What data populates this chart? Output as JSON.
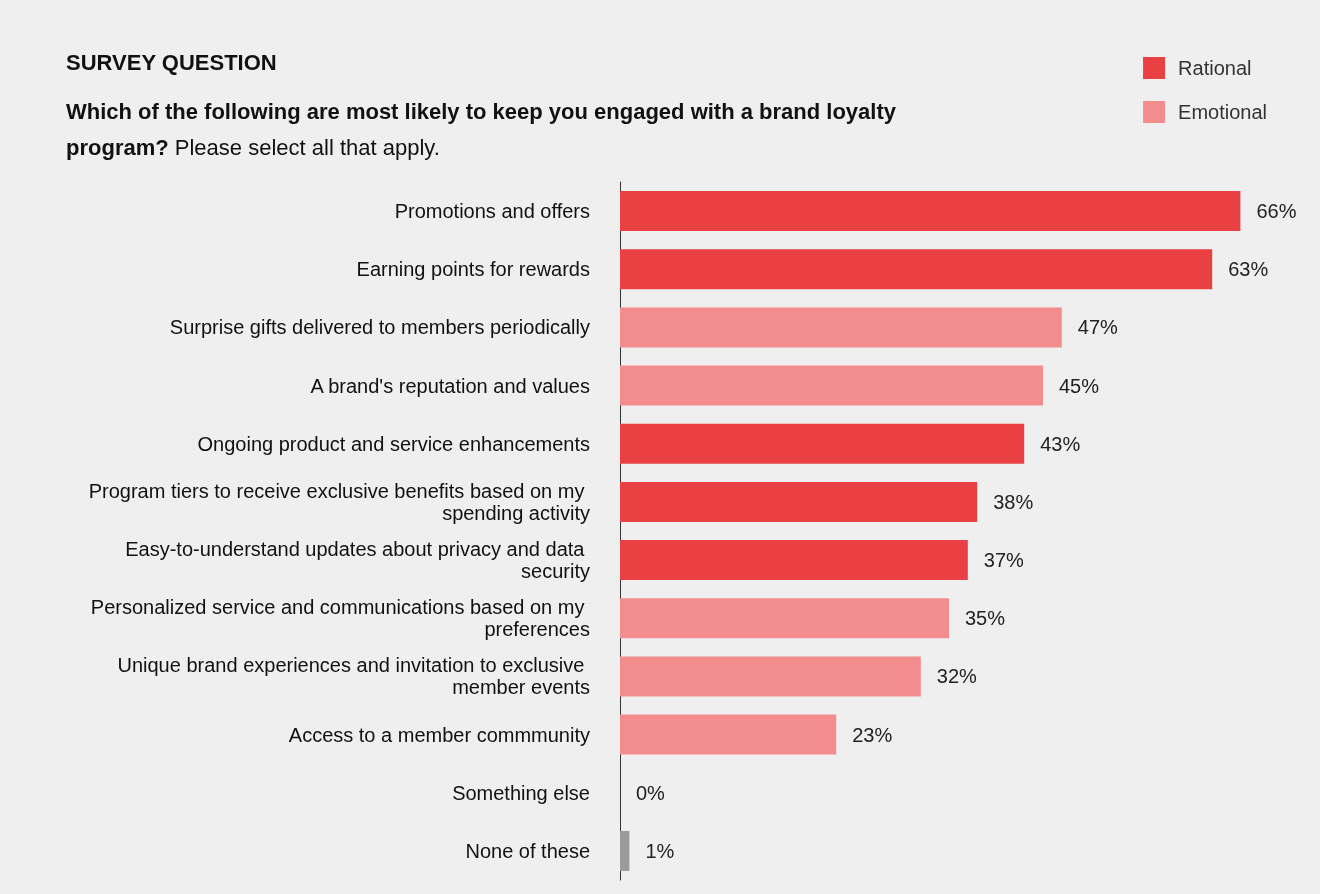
{
  "chart_data": {
    "type": "bar",
    "orientation": "horizontal",
    "stacked": true,
    "title": "SURVEY QUESTION",
    "subtitle": "Which of the following are most likely to keep you engaged with a brand loyalty program? Please select all that apply.",
    "legend": "top right",
    "grid": false,
    "categories": [
      "Promotions and offers",
      "Earning points for rewards",
      "Surprise gifts delivered to members periodically",
      "A brand's reputation and values",
      "Ongoing product and service enhancements",
      "Program tiers to receive exclusive benefits based on my spending activity",
      "Easy-to-understand updates about privacy and data security",
      "Personalized service and communications based on my preferences",
      "Unique brand experiences and invitation to exclusive member events",
      "Access to a member commmunity",
      "Something else",
      "None of these"
    ],
    "series": [
      {
        "name": "Rational",
        "color": "#e94043",
        "values": [
          66,
          63,
          null,
          null,
          43,
          38,
          37,
          null,
          null,
          null,
          null,
          null
        ],
        "value_labels": [
          "66%",
          "63%",
          null,
          null,
          "43%",
          "38%",
          "37%",
          null,
          null,
          null,
          null,
          null
        ]
      },
      {
        "name": "Emotional",
        "color": "#f38d8d",
        "values": [
          null,
          null,
          47,
          45,
          null,
          null,
          null,
          35,
          32,
          23,
          null,
          null
        ],
        "value_labels": [
          null,
          null,
          "47%",
          "45%",
          null,
          null,
          null,
          "35%",
          "32%",
          "23%",
          null,
          null
        ]
      },
      {
        "color": "#9b9b9b",
        "values": [
          null,
          null,
          null,
          null,
          null,
          null,
          null,
          null,
          null,
          null,
          0,
          1
        ],
        "value_labels": [
          null,
          null,
          null,
          null,
          null,
          null,
          null,
          null,
          null,
          null,
          "0%",
          "1%"
        ]
      }
    ]
  }
}
